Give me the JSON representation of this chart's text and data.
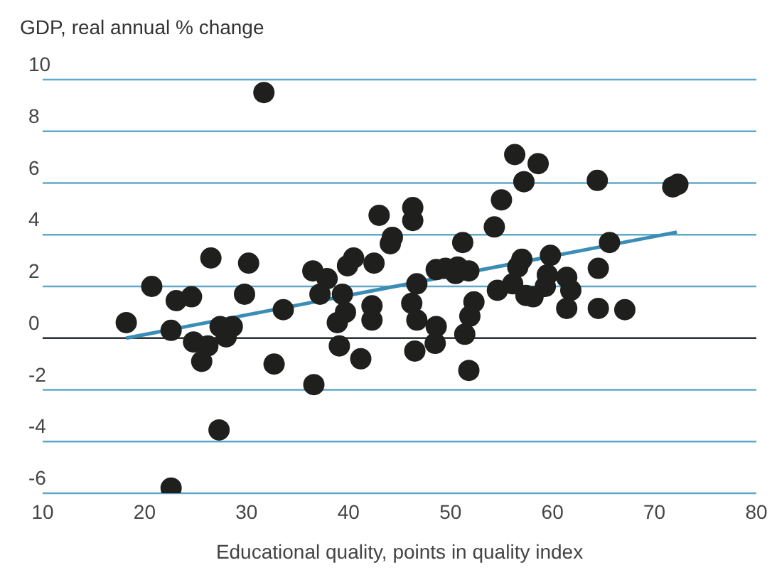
{
  "chart_data": {
    "type": "scatter",
    "ylabel": "GDP, real annual % change",
    "xlabel": "Educational quality, points in quality index",
    "xlim": [
      10,
      80
    ],
    "xticks": [
      10,
      20,
      30,
      40,
      50,
      60,
      70,
      80
    ],
    "ylim": [
      -6,
      10
    ],
    "yticks": [
      -6,
      -4,
      -2,
      0,
      2,
      4,
      6,
      8,
      10
    ],
    "grid": "y",
    "ref_lines": [
      {
        "axis": "y",
        "value": 0,
        "color": "#333333"
      }
    ],
    "series": [
      {
        "type": "scatter",
        "color": "#1f201d",
        "marker": "circle",
        "x": [
          18.2,
          20.7,
          22.6,
          23.1,
          24.6,
          24.8,
          26.2,
          25.6,
          26.5,
          27.4,
          28.0,
          28.6,
          27.3,
          22.6,
          30.2,
          29.8,
          31.7,
          32.7,
          33.6,
          36.5,
          37.9,
          37.2,
          36.6,
          39.4,
          39.9,
          40.5,
          42.5,
          43.0,
          39.7,
          38.9,
          39.1,
          41.2,
          42.3,
          42.3,
          44.3,
          44.1,
          46.3,
          46.3,
          51.2,
          54.3,
          55.0,
          56.3,
          58.6,
          57.2,
          64.4,
          71.8,
          72.3,
          65.6,
          64.5,
          59.8,
          57.0,
          56.6,
          46.7,
          48.6,
          49.5,
          50.7,
          51.8,
          50.5,
          46.2,
          46.7,
          48.6,
          48.5,
          46.5,
          51.4,
          51.9,
          52.3,
          51.8,
          54.6,
          56.1,
          57.4,
          58.1,
          59.3,
          59.5,
          61.4,
          61.8,
          61.4,
          64.5,
          67.1
        ],
        "values": [
          0.6,
          2.0,
          0.3,
          1.45,
          1.6,
          -0.15,
          -0.3,
          -0.9,
          3.1,
          0.45,
          0.05,
          0.45,
          -3.55,
          -5.8,
          2.9,
          1.7,
          9.5,
          -1.0,
          1.1,
          2.6,
          2.3,
          1.7,
          -1.8,
          1.7,
          2.8,
          3.1,
          2.9,
          4.75,
          1.0,
          0.6,
          -0.3,
          -0.8,
          1.25,
          0.7,
          3.9,
          3.65,
          5.05,
          4.55,
          3.7,
          4.3,
          5.35,
          7.1,
          6.75,
          6.05,
          6.1,
          5.85,
          5.95,
          3.7,
          2.7,
          3.2,
          3.05,
          2.75,
          2.1,
          2.65,
          2.7,
          2.75,
          2.6,
          2.5,
          1.35,
          0.7,
          0.45,
          -0.2,
          -0.5,
          0.15,
          0.85,
          1.4,
          -1.25,
          1.85,
          2.1,
          1.65,
          1.6,
          2.0,
          2.45,
          2.35,
          1.85,
          1.15,
          1.15,
          1.1
        ]
      },
      {
        "type": "line",
        "color": "#3b8db5",
        "x": [
          18.2,
          72.2
        ],
        "values": [
          0,
          4.1
        ]
      }
    ]
  }
}
